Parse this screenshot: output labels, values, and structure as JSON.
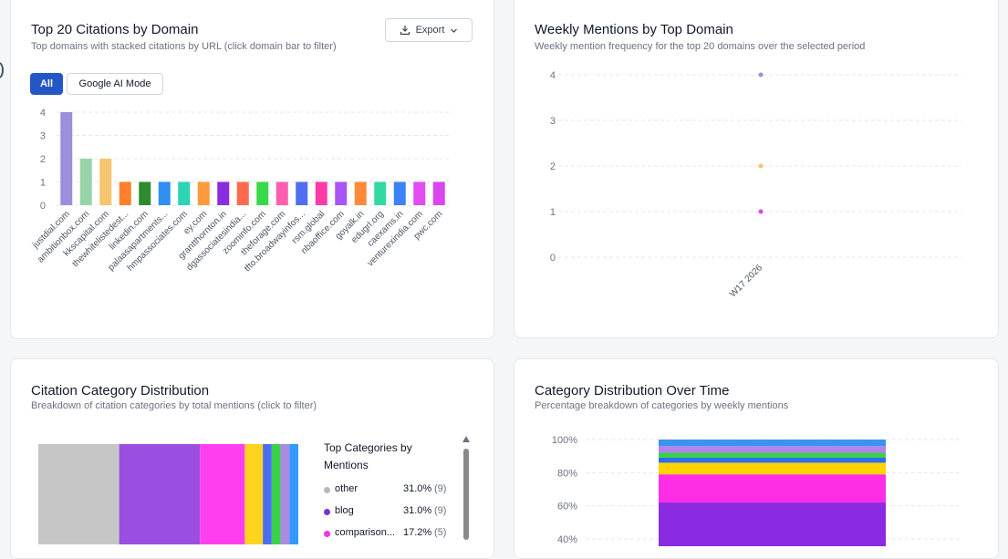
{
  "card1": {
    "title": "Top 20 Citations by Domain",
    "subtitle": "Top domains with stacked citations by URL (click domain bar to filter)",
    "export_label": "Export",
    "filters": [
      "All",
      "Google AI Mode"
    ]
  },
  "card2": {
    "title": "Weekly Mentions by Top Domain",
    "subtitle": "Weekly mention frequency for the top 20 domains over the selected period"
  },
  "card3": {
    "title": "Citation Category Distribution",
    "subtitle": "Breakdown of citation categories by total mentions (click to filter)",
    "legend_title": "Top Categories by Mentions",
    "legend": [
      {
        "label": "other",
        "pct": "31.0%",
        "count": "(9)",
        "color": "#b8b8b8"
      },
      {
        "label": "blog",
        "pct": "31.0%",
        "count": "(9)",
        "color": "#7c2fd6"
      },
      {
        "label": "comparison...",
        "pct": "17.2%",
        "count": "(5)",
        "color": "#ff2ee6"
      }
    ]
  },
  "card4": {
    "title": "Category Distribution Over Time",
    "subtitle": "Percentage breakdown of categories by weekly mentions"
  },
  "chart_data": [
    {
      "type": "bar",
      "title": "Top 20 Citations by Domain",
      "categories": [
        "justdial.com",
        "ambitionbox.com",
        "kkscapital.com",
        "thewhitelistedest...",
        "linkedin.com",
        "palaasapartments...",
        "hmpassociates.com",
        "ey.com",
        "grantthornton.in",
        "dgassociatesindia...",
        "zoominfo.com",
        "theforage.com",
        "tfto.broadwayinfos...",
        "rsm.global",
        "nbaoffice.com",
        "goyalk.in",
        "edugrl.org",
        "caexams.in",
        "venturexindia.com",
        "pwc.com"
      ],
      "values": [
        4,
        2,
        2,
        1,
        1,
        1,
        1,
        1,
        1,
        1,
        1,
        1,
        1,
        1,
        1,
        1,
        1,
        1,
        1,
        1
      ],
      "colors": [
        "#9b8fdc",
        "#98d4a8",
        "#f6c56d",
        "#ff7f2a",
        "#2e8b2e",
        "#2f8ff2",
        "#2ad4b4",
        "#ff9a3c",
        "#8a2ce0",
        "#ff6a4d",
        "#37d94a",
        "#ff5fae",
        "#4f6ef0",
        "#ff3aa5",
        "#a855f7",
        "#ff8a3a",
        "#33d9a0",
        "#3b82f6",
        "#e34cf0",
        "#d946ef"
      ],
      "yticks": [
        0,
        1,
        2,
        3,
        4
      ],
      "ylim": [
        0,
        4
      ]
    },
    {
      "type": "scatter",
      "title": "Weekly Mentions by Top Domain",
      "x": [
        "W17 2026"
      ],
      "points": [
        {
          "x": "W17 2026",
          "y": 4,
          "color": "#9b8fdc"
        },
        {
          "x": "W17 2026",
          "y": 2,
          "color": "#f6c56d"
        },
        {
          "x": "W17 2026",
          "y": 1,
          "color": "#d946ef"
        }
      ],
      "yticks": [
        0,
        1,
        2,
        3,
        4
      ],
      "ylim": [
        0,
        4
      ]
    },
    {
      "type": "treemap",
      "title": "Citation Category Distribution",
      "values": [
        31.0,
        31.0,
        17.2,
        6.9,
        3.4,
        3.4,
        3.4,
        3.4
      ],
      "colors": [
        "#c6c6c6",
        "#9b4fe0",
        "#ff3ff0",
        "#ffd41f",
        "#4a6ef0",
        "#3bd04a",
        "#a98be0",
        "#3399ff"
      ]
    },
    {
      "type": "bar",
      "title": "Category Distribution Over Time",
      "categories": [
        "W17 2026"
      ],
      "series": [
        {
          "value": 62,
          "color": "#8a2be2"
        },
        {
          "value": 17,
          "color": "#ff2ee6"
        },
        {
          "value": 7,
          "color": "#ffd400"
        },
        {
          "value": 3,
          "color": "#2e6df0"
        },
        {
          "value": 3,
          "color": "#37d24a"
        },
        {
          "value": 4,
          "color": "#b084e8"
        },
        {
          "value": 4,
          "color": "#3b93f0"
        }
      ],
      "yticks": [
        "40%",
        "60%",
        "80%",
        "100%"
      ],
      "ylim": [
        40,
        100
      ]
    }
  ]
}
